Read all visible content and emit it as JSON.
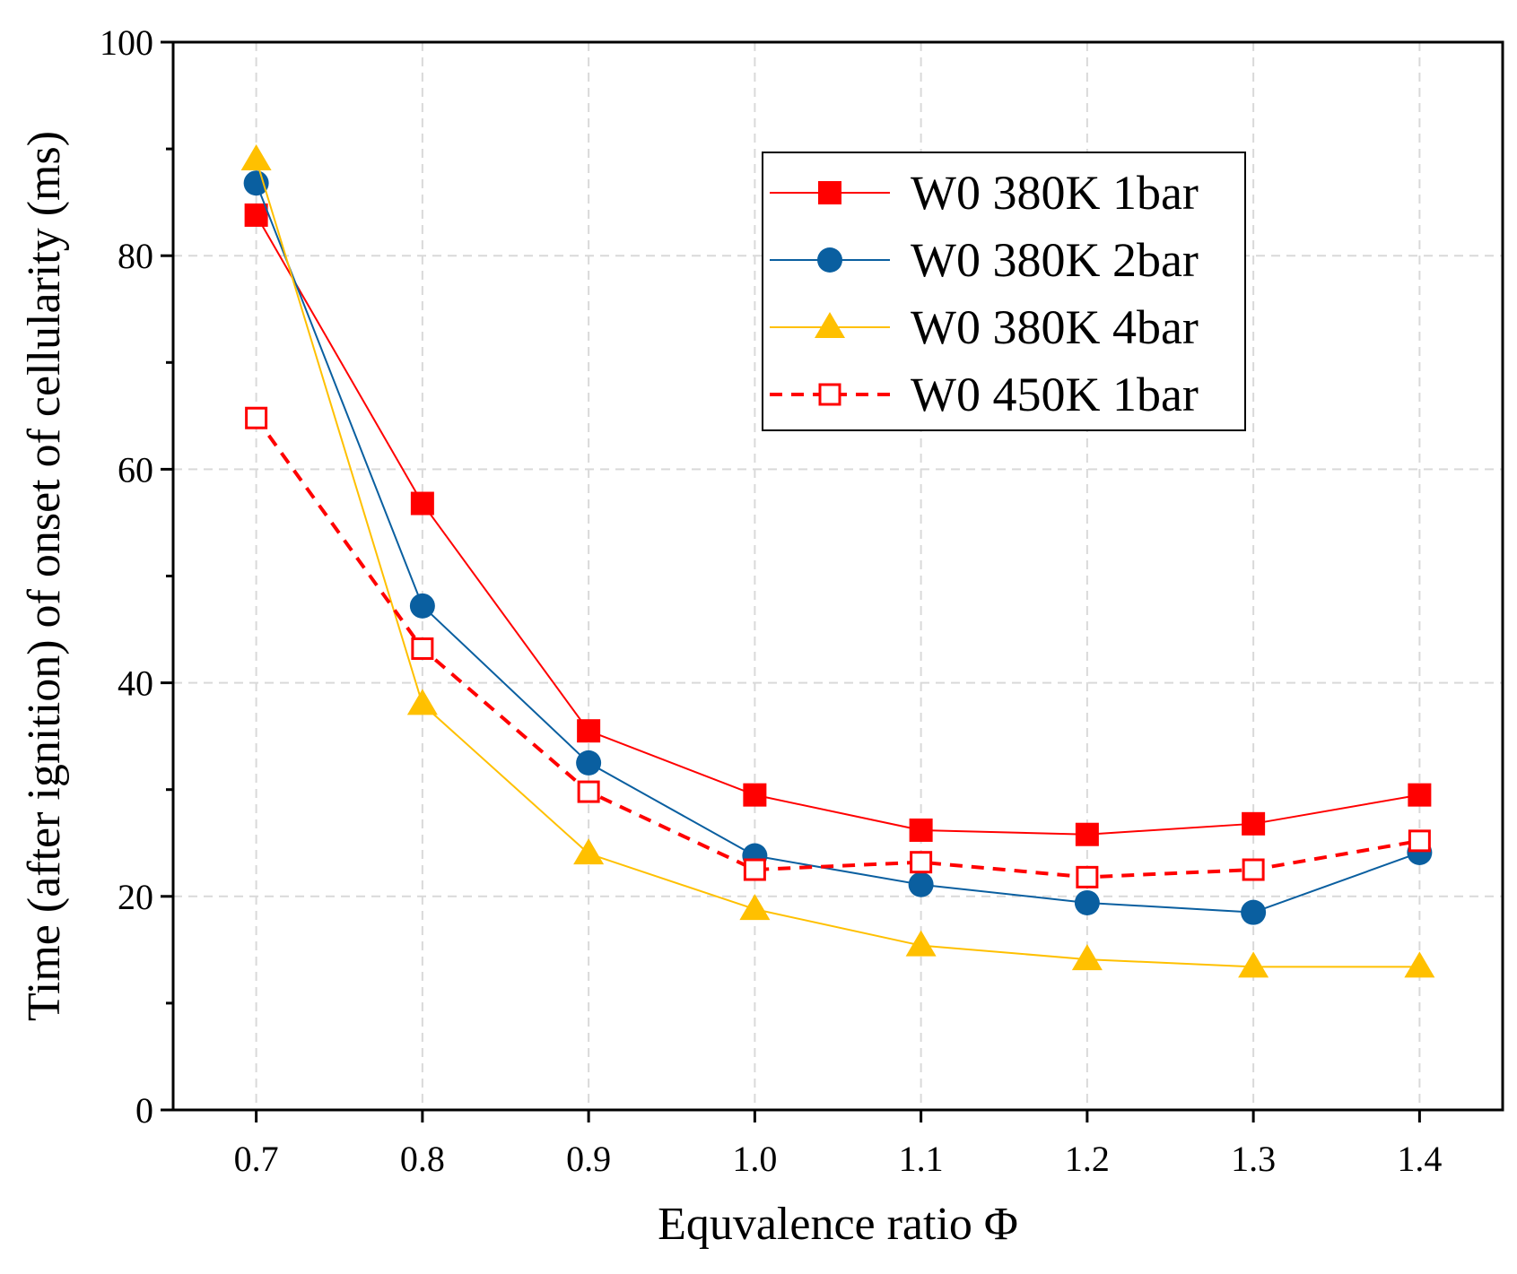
{
  "chart_data": {
    "type": "line",
    "title": "",
    "xlabel": "Equvalence ratio Φ",
    "ylabel": "Time (after ignition) of onset of cellularity (ms)",
    "x": [
      0.7,
      0.8,
      0.9,
      1.0,
      1.1,
      1.2,
      1.3,
      1.4
    ],
    "x_tick_labels": [
      "0.7",
      "0.8",
      "0.9",
      "1.0",
      "1.1",
      "1.2",
      "1.3",
      "1.4"
    ],
    "xlim": [
      0.65,
      1.45
    ],
    "ylim": [
      0,
      100
    ],
    "y_ticks": [
      0,
      20,
      40,
      60,
      80,
      100
    ],
    "y_tick_labels": [
      "0",
      "20",
      "40",
      "60",
      "80",
      "100"
    ],
    "grid": true,
    "legend_position": "top-right",
    "series": [
      {
        "name": "W0 380K 1bar",
        "color": "#ff0000",
        "marker": "square-filled",
        "line": "solid",
        "values": [
          83.8,
          56.8,
          35.5,
          29.5,
          26.2,
          25.8,
          26.8,
          29.5
        ]
      },
      {
        "name": "W0 380K 2bar",
        "color": "#0a5fa0",
        "marker": "circle-filled",
        "line": "solid",
        "values": [
          86.8,
          47.2,
          32.5,
          23.8,
          21.1,
          19.4,
          18.5,
          24.1
        ]
      },
      {
        "name": "W0 380K 4bar",
        "color": "#ffc000",
        "marker": "triangle-filled",
        "line": "solid",
        "values": [
          89.0,
          38.0,
          24.0,
          18.8,
          15.4,
          14.1,
          13.4,
          13.4
        ]
      },
      {
        "name": "W0 450K 1bar",
        "color": "#ff0000",
        "marker": "square-open",
        "line": "dashed",
        "values": [
          64.8,
          43.2,
          29.8,
          22.5,
          23.2,
          21.8,
          22.5,
          25.2
        ]
      }
    ]
  }
}
